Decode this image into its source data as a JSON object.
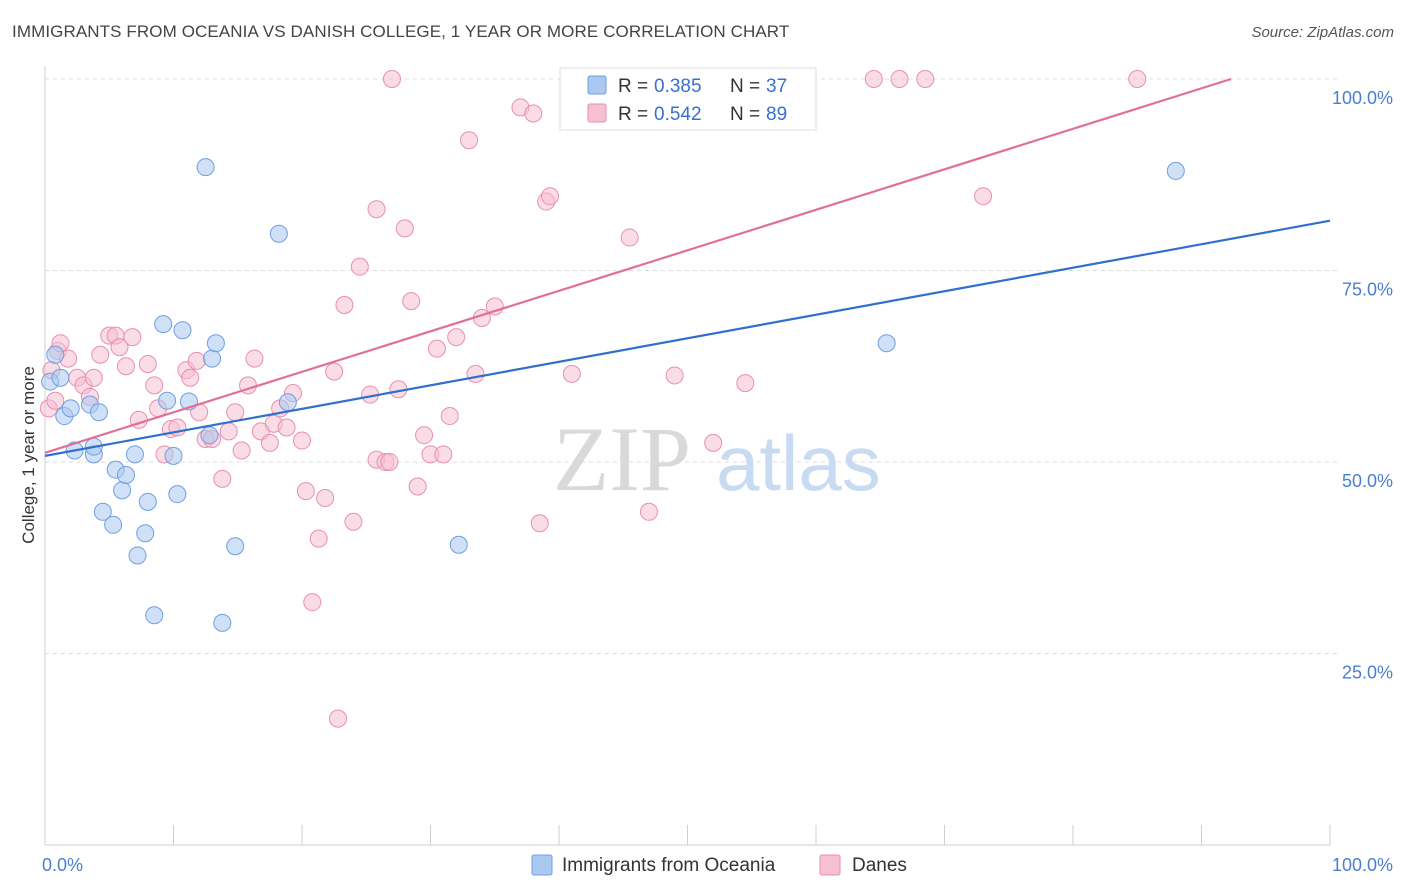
{
  "title": "IMMIGRANTS FROM OCEANIA VS DANISH COLLEGE, 1 YEAR OR MORE CORRELATION CHART",
  "source": "Source: ZipAtlas.com",
  "watermark": {
    "zip": "ZIP",
    "atlas": "atlas"
  },
  "colors": {
    "blue_fill": "#aac8f0",
    "blue_stroke": "#6f9fe0",
    "blue_line": "#2f6fcf",
    "pink_fill": "#f6bfd2",
    "pink_stroke": "#e98fb0",
    "pink_line": "#e0709a"
  },
  "legend": {
    "rows": [
      {
        "r_label": "R =",
        "r_value": "0.385",
        "n_label": "N =",
        "n_value": "37"
      },
      {
        "r_label": "R =",
        "r_value": "0.542",
        "n_label": "N =",
        "n_value": "89"
      }
    ]
  },
  "chart_data": {
    "type": "scatter",
    "title": "IMMIGRANTS FROM OCEANIA VS DANISH COLLEGE, 1 YEAR OR MORE CORRELATION CHART",
    "xlabel": "",
    "ylabel": "College, 1 year or more",
    "xlim": [
      0,
      100
    ],
    "ylim": [
      0,
      100
    ],
    "x_tick_labels": [
      "0.0%",
      "100.0%"
    ],
    "y_ticks": [
      25,
      50,
      75,
      100
    ],
    "y_tick_labels": [
      "25.0%",
      "50.0%",
      "75.0%",
      "100.0%"
    ],
    "grid": true,
    "legend_position": "top-center",
    "series": [
      {
        "name": "Immigrants from Oceania",
        "r": 0.385,
        "n": 37,
        "trend": [
          [
            0,
            50.8
          ],
          [
            100,
            81.5
          ]
        ],
        "points": [
          [
            0.4,
            60.5
          ],
          [
            0.8,
            64
          ],
          [
            1.2,
            61
          ],
          [
            1.5,
            56
          ],
          [
            2,
            57
          ],
          [
            2.3,
            51.5
          ],
          [
            3.5,
            57.5
          ],
          [
            3.8,
            51
          ],
          [
            3.8,
            52
          ],
          [
            4.2,
            56.5
          ],
          [
            4.5,
            43.5
          ],
          [
            5.3,
            41.8
          ],
          [
            5.5,
            49
          ],
          [
            6,
            46.3
          ],
          [
            6.3,
            48.3
          ],
          [
            7,
            51
          ],
          [
            7.2,
            37.8
          ],
          [
            7.8,
            40.7
          ],
          [
            8,
            44.8
          ],
          [
            8.5,
            30
          ],
          [
            9.2,
            68
          ],
          [
            9.5,
            58
          ],
          [
            10,
            50.8
          ],
          [
            10.3,
            45.8
          ],
          [
            10.7,
            67.2
          ],
          [
            11.2,
            57.9
          ],
          [
            12.5,
            88.5
          ],
          [
            12.8,
            53.5
          ],
          [
            13,
            63.5
          ],
          [
            13.3,
            65.5
          ],
          [
            13.8,
            29
          ],
          [
            14.8,
            39
          ],
          [
            18.2,
            79.8
          ],
          [
            18.9,
            57.8
          ],
          [
            32.2,
            39.2
          ],
          [
            65.5,
            65.5
          ],
          [
            88,
            88
          ]
        ]
      },
      {
        "name": "Danes",
        "r": 0.542,
        "n": 89,
        "trend": [
          [
            0,
            51.2
          ],
          [
            92.3,
            100
          ]
        ],
        "points": [
          [
            0.3,
            57
          ],
          [
            1,
            64.5
          ],
          [
            1.2,
            65.5
          ],
          [
            1.8,
            63.5
          ],
          [
            2.5,
            61
          ],
          [
            3,
            60
          ],
          [
            3.5,
            58.5
          ],
          [
            3.8,
            61
          ],
          [
            4.3,
            64
          ],
          [
            5,
            66.5
          ],
          [
            5.5,
            66.5
          ],
          [
            5.8,
            65
          ],
          [
            6.3,
            62.5
          ],
          [
            6.8,
            66.3
          ],
          [
            7.3,
            55.5
          ],
          [
            8,
            62.8
          ],
          [
            8.5,
            60
          ],
          [
            8.8,
            57
          ],
          [
            9.3,
            51
          ],
          [
            9.8,
            54.3
          ],
          [
            10.3,
            54.5
          ],
          [
            11,
            62
          ],
          [
            11.3,
            61
          ],
          [
            11.8,
            63.2
          ],
          [
            12,
            56.5
          ],
          [
            12.5,
            53
          ],
          [
            13,
            53
          ],
          [
            13.8,
            47.8
          ],
          [
            14.3,
            54
          ],
          [
            14.8,
            56.5
          ],
          [
            15.3,
            51.5
          ],
          [
            15.8,
            60
          ],
          [
            16.3,
            63.5
          ],
          [
            16.8,
            54
          ],
          [
            17.5,
            52.5
          ],
          [
            17.8,
            55
          ],
          [
            18.3,
            57
          ],
          [
            18.8,
            54.5
          ],
          [
            19.3,
            59
          ],
          [
            20,
            52.8
          ],
          [
            20.3,
            46.2
          ],
          [
            20.8,
            31.7
          ],
          [
            21.3,
            40
          ],
          [
            21.8,
            45.3
          ],
          [
            22.5,
            61.8
          ],
          [
            22.8,
            16.5
          ],
          [
            23.3,
            70.5
          ],
          [
            24,
            42.2
          ],
          [
            24.5,
            75.5
          ],
          [
            25.3,
            58.8
          ],
          [
            25.8,
            50.3
          ],
          [
            25.8,
            83
          ],
          [
            26.5,
            50
          ],
          [
            26.8,
            50
          ],
          [
            27,
            100
          ],
          [
            27.5,
            59.5
          ],
          [
            28,
            80.5
          ],
          [
            28.5,
            71
          ],
          [
            29,
            46.8
          ],
          [
            29.5,
            53.5
          ],
          [
            30,
            51
          ],
          [
            30.5,
            64.8
          ],
          [
            31,
            51
          ],
          [
            31.5,
            56
          ],
          [
            32,
            66.3
          ],
          [
            33,
            92
          ],
          [
            33.5,
            61.5
          ],
          [
            34,
            68.8
          ],
          [
            35,
            70.3
          ],
          [
            37,
            96.3
          ],
          [
            38,
            95.5
          ],
          [
            38.5,
            42
          ],
          [
            39,
            84
          ],
          [
            39.3,
            84.7
          ],
          [
            41,
            61.5
          ],
          [
            44,
            100
          ],
          [
            45.5,
            79.3
          ],
          [
            47,
            43.5
          ],
          [
            49,
            61.3
          ],
          [
            52,
            52.5
          ],
          [
            54.5,
            60.3
          ],
          [
            58,
            100
          ],
          [
            64.5,
            100
          ],
          [
            66.5,
            100
          ],
          [
            68.5,
            100
          ],
          [
            73,
            84.7
          ],
          [
            85,
            100
          ],
          [
            0.5,
            62
          ],
          [
            0.8,
            58
          ]
        ]
      }
    ]
  },
  "bottom_legend": [
    "Immigrants from Oceania",
    "Danes"
  ]
}
